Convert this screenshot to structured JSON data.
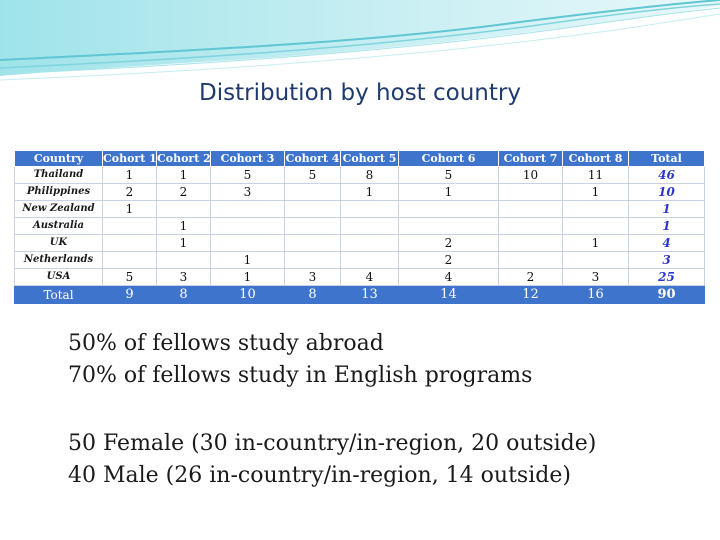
{
  "title": "Distribution by host country",
  "table": {
    "headers": [
      "Country",
      "Cohort 1",
      "Cohort 2",
      "Cohort 3",
      "Cohort 4",
      "Cohort 5",
      "Cohort 6",
      "Cohort 7",
      "Cohort 8",
      "Total"
    ],
    "rows": [
      {
        "country": "Thailand",
        "cells": [
          "1",
          "1",
          "5",
          "5",
          "8",
          "5",
          "10",
          "11",
          "46"
        ]
      },
      {
        "country": "Philippines",
        "cells": [
          "2",
          "2",
          "3",
          "",
          "1",
          "1",
          "",
          "1",
          "10"
        ]
      },
      {
        "country": "New Zealand",
        "cells": [
          "1",
          "",
          "",
          "",
          "",
          "",
          "",
          "",
          "1"
        ]
      },
      {
        "country": "Australia",
        "cells": [
          "",
          "1",
          "",
          "",
          "",
          "",
          "",
          "",
          "1"
        ]
      },
      {
        "country": "UK",
        "cells": [
          "",
          "1",
          "",
          "",
          "",
          "2",
          "",
          "1",
          "4"
        ]
      },
      {
        "country": "Netherlands",
        "cells": [
          "",
          "",
          "1",
          "",
          "",
          "2",
          "",
          "",
          "3"
        ]
      },
      {
        "country": "USA",
        "cells": [
          "5",
          "3",
          "1",
          "3",
          "4",
          "4",
          "2",
          "3",
          "25"
        ]
      }
    ],
    "total_row": {
      "label": "Total",
      "cells": [
        "9",
        "8",
        "10",
        "8",
        "13",
        "14",
        "12",
        "16",
        "90"
      ]
    }
  },
  "stats": {
    "line1": "50% of fellows study abroad",
    "line2": "70% of fellows study in English programs",
    "line3": "50 Female (30 in-country/in-region, 20 outside)",
    "line4": "40 Male (26 in-country/in-region, 14 outside)"
  },
  "colors": {
    "header_bg": "#3e74cc",
    "title_text": "#1f3b6e",
    "total_column_text": "#2d36c6",
    "banner_teal": "#6fd0dc"
  }
}
